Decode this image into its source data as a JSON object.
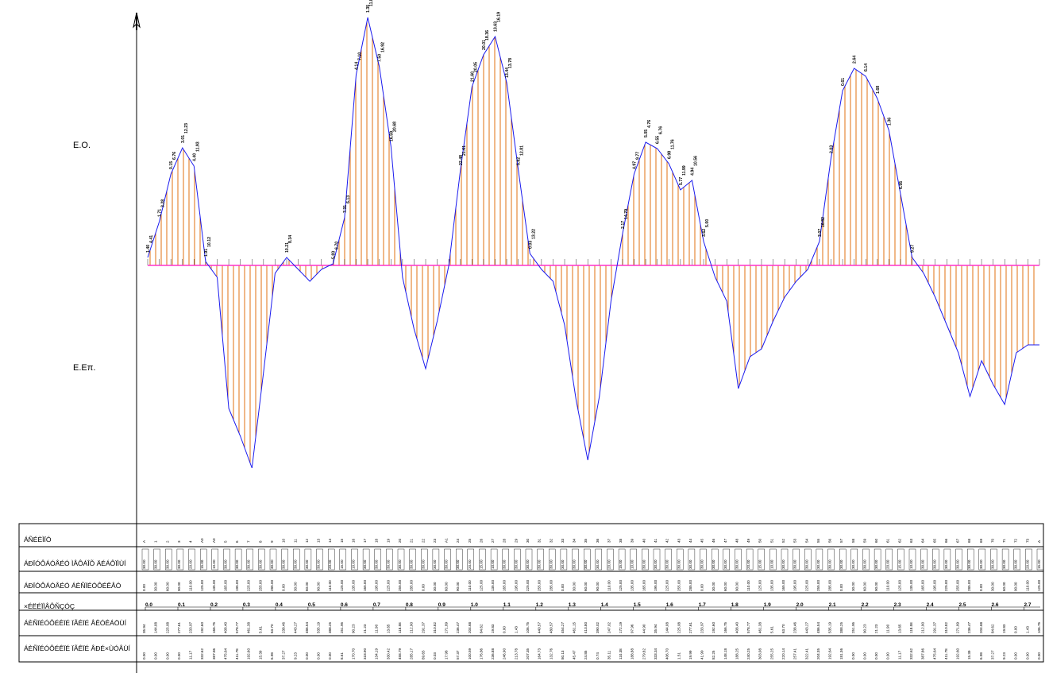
{
  "labels": {
    "cut_side": "E.O.",
    "fill_side": "E.Επ.",
    "rows": [
      "ÁÑÉÈÌÏÓ",
      "ÁÐÏÓÔÁÓÅÉÓ ÌÅÔÁÎÕ ÄÉÁÔÏÌÙÍ",
      "ÁÐÏÓÔÁÓÅÉÓ ÁÈÑÏÉÓÔÉÊÅÓ",
      "×ÉËÉÏÌÅÔÑÇÓÇ",
      "ÁÈÑÏÉÓÔÉÊÏÉ ÏÃÊÏÉ ÅÊÓÊÁÖÙÍ",
      "ÁÈÑÏÉÓÔÉÊÏÉ ÏÃÊÏÉ ÅÐÉ×ÙÓÅÙÍ"
    ]
  },
  "colors": {
    "baseline": "#ff33cc",
    "envelope": "#1a1aee",
    "hatch": "#e07010",
    "grid": "#000000"
  },
  "diagram": {
    "stations": [
      {
        "name": "A",
        "v": 10
      },
      {
        "name": "1",
        "v": 55
      },
      {
        "name": "2",
        "v": 115
      },
      {
        "name": "3",
        "v": 148
      },
      {
        "name": "4",
        "v": 125
      },
      {
        "name": "Α0",
        "v": 5
      },
      {
        "name": "Α0",
        "v": -15
      },
      {
        "name": "5",
        "v": -180
      },
      {
        "name": "6",
        "v": -215
      },
      {
        "name": "7",
        "v": -255
      },
      {
        "name": "8",
        "v": -135
      },
      {
        "name": "9",
        "v": -10
      },
      {
        "name": "10",
        "v": 10
      },
      {
        "name": "11",
        "v": -5
      },
      {
        "name": "12",
        "v": -20
      },
      {
        "name": "13",
        "v": -5
      },
      {
        "name": "14",
        "v": 2
      },
      {
        "name": "15",
        "v": 60
      },
      {
        "name": "16",
        "v": 240
      },
      {
        "name": "17",
        "v": 312
      },
      {
        "name": "18",
        "v": 250
      },
      {
        "name": "19",
        "v": 150
      },
      {
        "name": "20",
        "v": -15
      },
      {
        "name": "21",
        "v": -80
      },
      {
        "name": "22",
        "v": -130
      },
      {
        "name": "23",
        "v": -70
      },
      {
        "name": "Α1",
        "v": 0
      },
      {
        "name": "24",
        "v": 120
      },
      {
        "name": "25",
        "v": 225
      },
      {
        "name": "26",
        "v": 265
      },
      {
        "name": "27",
        "v": 288
      },
      {
        "name": "28",
        "v": 230
      },
      {
        "name": "29",
        "v": 120
      },
      {
        "name": "30",
        "v": 15
      },
      {
        "name": "31",
        "v": -5
      },
      {
        "name": "32",
        "v": -20
      },
      {
        "name": "33",
        "v": -75
      },
      {
        "name": "34",
        "v": -170
      },
      {
        "name": "35",
        "v": -245
      },
      {
        "name": "36",
        "v": -165
      },
      {
        "name": "37",
        "v": -45
      },
      {
        "name": "38",
        "v": 40
      },
      {
        "name": "39",
        "v": 115
      },
      {
        "name": "40",
        "v": 155
      },
      {
        "name": "41",
        "v": 147
      },
      {
        "name": "42",
        "v": 128
      },
      {
        "name": "43",
        "v": 95
      },
      {
        "name": "44",
        "v": 107
      },
      {
        "name": "45",
        "v": 30
      },
      {
        "name": "46",
        "v": -15
      },
      {
        "name": "47",
        "v": -45
      },
      {
        "name": "48",
        "v": -155
      },
      {
        "name": "49",
        "v": -115
      },
      {
        "name": "50",
        "v": -105
      },
      {
        "name": "51",
        "v": -70
      },
      {
        "name": "52",
        "v": -40
      },
      {
        "name": "53",
        "v": -20
      },
      {
        "name": "54",
        "v": -5
      },
      {
        "name": "55",
        "v": 30
      },
      {
        "name": "56",
        "v": 135
      },
      {
        "name": "57",
        "v": 220
      },
      {
        "name": "58",
        "v": 248
      },
      {
        "name": "59",
        "v": 238
      },
      {
        "name": "60",
        "v": 210
      },
      {
        "name": "61",
        "v": 170
      },
      {
        "name": "62",
        "v": 90
      },
      {
        "name": "63",
        "v": 10
      },
      {
        "name": "64",
        "v": -10
      },
      {
        "name": "65",
        "v": -40
      },
      {
        "name": "66",
        "v": -75
      },
      {
        "name": "67",
        "v": -110
      },
      {
        "name": "68",
        "v": -165
      },
      {
        "name": "69",
        "v": -120
      },
      {
        "name": "70",
        "v": -150
      },
      {
        "name": "71",
        "v": -175
      },
      {
        "name": "72",
        "v": -110
      },
      {
        "name": "73",
        "v": -100
      },
      {
        "name": "Δ",
        "v": -100
      }
    ],
    "cut_labels": [
      "1.40",
      "1.71",
      "0.15",
      "3.01",
      "4.40",
      "1.91",
      "10.21",
      "5.83",
      "7.31",
      "4.14",
      "1.35",
      "7.50",
      "16.59",
      "22.48",
      "21.60",
      "20.01",
      "13.63",
      "13.44",
      "5.82",
      "0.03",
      "2.17",
      "4.97",
      "5.05",
      "6.55",
      "6.98",
      "5.77",
      "4.94",
      "3.62",
      "3.07",
      "2.03",
      "0.61",
      "2.64",
      "6.14",
      "1.68",
      "1.36",
      "6.95",
      "9.27",
      "4.41",
      "3.28",
      "6.76",
      "12.23",
      "11.93",
      "10.12",
      "8.34",
      "6.70",
      "6.13",
      "7.10",
      "11.85",
      "16.92",
      "20.68",
      "21.61",
      "20.05",
      "18.36",
      "16.19",
      "13.78",
      "12.81",
      "13.22",
      "14.79",
      "9.77",
      "4.76",
      "6.76",
      "11.76",
      "11.99",
      "10.56",
      "5.00",
      "16.82"
    ],
    "fill_labels": [
      "2.91",
      "3.90",
      "5.12",
      "6.58",
      "4.20",
      "1.03",
      "0.55",
      "0.88",
      "3.17",
      "6.20",
      "5.44",
      "4.81",
      "2.10",
      "0.64",
      "1.19",
      "4.33",
      "5.94",
      "6.02",
      "5.26",
      "4.71",
      "3.82",
      "2.38",
      "1.47"
    ],
    "row_values": {
      "inter_distance": [
        "30.00",
        "30.00",
        "30.00",
        "30.00",
        "20.00",
        "15.00",
        "10.00",
        "30.00",
        "30.00",
        "30.00",
        "30.00",
        "30.00"
      ],
      "accumulated": [
        "0.00",
        "30.00",
        "60.00",
        "90.00",
        "110.00",
        "125.00",
        "135.00",
        "165.00",
        "195.00",
        "225.00",
        "255.00",
        "285.00"
      ],
      "cut_volumes": [
        "35.94",
        "144.08",
        "225.08",
        "277.61",
        "233.97",
        "192.60",
        "166.75",
        "408.40",
        "578.77",
        "461.38",
        "5.61",
        "63.70",
        "238.46",
        "443.27",
        "486.54",
        "535.19",
        "388.25",
        "251.95",
        "90.23",
        "21.23",
        "11.90",
        "13.65",
        "118.58",
        "212.90",
        "291.37",
        "310.82",
        "271.89",
        "236.47",
        "204.68",
        "84.62",
        "19.83",
        "0.00",
        "1.43",
        "106.75",
        "440.57",
        "480.57",
        "454.27",
        "461.15",
        "413.80",
        "390.02",
        "247.02",
        "172.19",
        "97.96",
        "44.90"
      ],
      "fill_volumes": [
        "0.00",
        "0.00",
        "0.00",
        "0.00",
        "11.17",
        "332.62",
        "387.86",
        "475.64",
        "411.78",
        "192.60",
        "15.39",
        "6.98",
        "37.27",
        "9.23",
        "0.00",
        "0.00",
        "0.00",
        "8.61",
        "170.70",
        "318.90",
        "134.19",
        "330.42",
        "458.79",
        "285.17",
        "89.65",
        "0.03",
        "17.98",
        "57.37",
        "100.59",
        "176.86",
        "236.88",
        "246.90",
        "213.78",
        "207.35",
        "164.73",
        "132.76",
        "80.13",
        "45.47",
        "24.85",
        "0.74",
        "35.11",
        "110.38",
        "188.88",
        "279.82",
        "333.34",
        "406.70",
        "1.51",
        "19.99",
        "41.99",
        "82.25",
        "148.18",
        "188.25",
        "240.25",
        "303.08",
        "255.25",
        "220.14",
        "257.41",
        "322.41",
        "204.35",
        "192.64",
        "181.36"
      ]
    },
    "km_labels": [
      "0.0",
      "0.1",
      "0.2",
      "0.3",
      "0.4",
      "0.5",
      "0.6",
      "0.7",
      "0.8",
      "0.9",
      "1.0",
      "1.1",
      "1.2",
      "1.3",
      "1.4",
      "1.5",
      "1.6",
      "1.7",
      "1.8",
      "1.9",
      "2.0",
      "2.1",
      "2.2",
      "2.3",
      "2.4",
      "2.5",
      "2.6",
      "2.7"
    ]
  }
}
